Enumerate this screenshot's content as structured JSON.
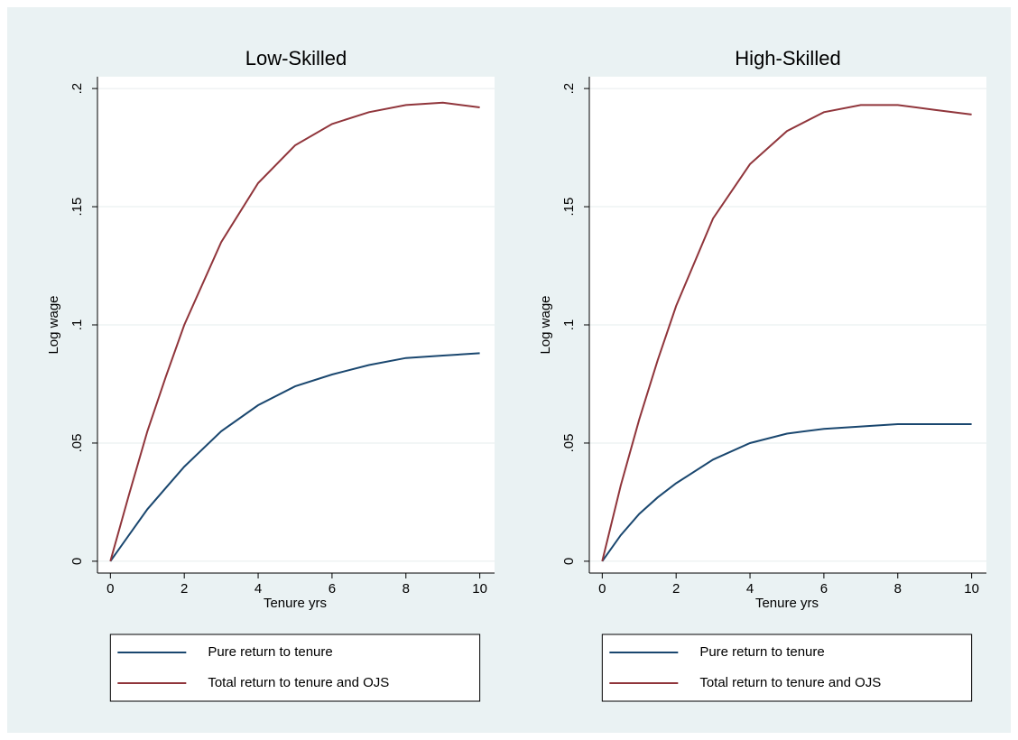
{
  "chart_data": [
    {
      "type": "line",
      "title": "Low-Skilled",
      "xlabel": "Tenure yrs",
      "ylabel": "Log wage",
      "x": [
        0,
        0.5,
        1,
        1.5,
        2,
        3,
        4,
        5,
        6,
        7,
        8,
        9,
        10
      ],
      "series": [
        {
          "name": "Pure return to tenure",
          "color": "#1a476f",
          "values": [
            0,
            0.011,
            0.022,
            0.031,
            0.04,
            0.055,
            0.066,
            0.074,
            0.079,
            0.083,
            0.086,
            0.087,
            0.088
          ]
        },
        {
          "name": "Total return to tenure and OJS",
          "color": "#90353b",
          "values": [
            0,
            0.028,
            0.055,
            0.078,
            0.1,
            0.135,
            0.16,
            0.176,
            0.185,
            0.19,
            0.193,
            0.194,
            0.192
          ]
        }
      ],
      "xlim": [
        -0.35,
        10.4
      ],
      "ylim": [
        -0.005,
        0.205
      ],
      "xticks": [
        0,
        2,
        4,
        6,
        8,
        10
      ],
      "yticks": [
        0,
        {
          "value": 0.05,
          "label": ".05"
        },
        {
          "value": 0.1,
          "label": ".1"
        },
        {
          "value": 0.15,
          "label": ".15"
        },
        {
          "value": 0.2,
          "label": ".2"
        }
      ],
      "grid": true,
      "legend": "bottom"
    },
    {
      "type": "line",
      "title": "High-Skilled",
      "xlabel": "Tenure yrs",
      "ylabel": "Log wage",
      "x": [
        0,
        0.5,
        1,
        1.5,
        2,
        3,
        4,
        5,
        6,
        7,
        8,
        9,
        10
      ],
      "series": [
        {
          "name": "Pure return to tenure",
          "color": "#1a476f",
          "values": [
            0,
            0.011,
            0.02,
            0.027,
            0.033,
            0.043,
            0.05,
            0.054,
            0.056,
            0.057,
            0.058,
            0.058,
            0.058
          ]
        },
        {
          "name": "Total return to tenure and OJS",
          "color": "#90353b",
          "values": [
            0,
            0.032,
            0.06,
            0.085,
            0.108,
            0.145,
            0.168,
            0.182,
            0.19,
            0.193,
            0.193,
            0.191,
            0.189
          ]
        }
      ],
      "xlim": [
        -0.35,
        10.4
      ],
      "ylim": [
        -0.005,
        0.205
      ],
      "xticks": [
        0,
        2,
        4,
        6,
        8,
        10
      ],
      "yticks": [
        0,
        {
          "value": 0.05,
          "label": ".05"
        },
        {
          "value": 0.1,
          "label": ".1"
        },
        {
          "value": 0.15,
          "label": ".15"
        },
        {
          "value": 0.2,
          "label": ".2"
        }
      ],
      "grid": true,
      "legend": "bottom"
    }
  ]
}
